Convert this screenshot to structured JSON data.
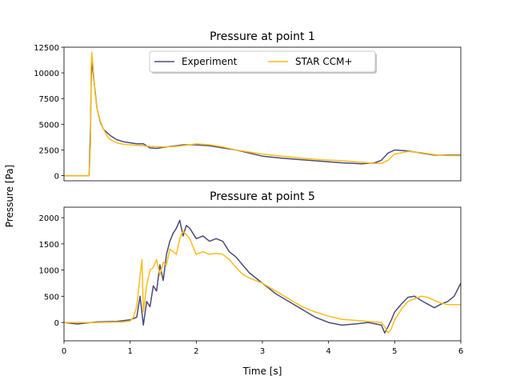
{
  "figure": {
    "ylabel": "Pressure [Pa]",
    "xlabel": "Time [s]"
  },
  "colors": {
    "experiment": "#4b4b7a",
    "star_ccm": "#fbbc1a",
    "legend_border": "#cccccc"
  },
  "chart_data": [
    {
      "type": "line",
      "title": "Pressure at point 1",
      "xlabel": "",
      "ylabel": "Pressure [Pa]",
      "xlim": [
        0,
        6
      ],
      "ylim": [
        -500,
        12500
      ],
      "yticks": [
        0,
        2500,
        5000,
        7500,
        10000,
        12500
      ],
      "ytick_labels": [
        "0",
        "2500",
        "5000",
        "7500",
        "10000",
        "12500"
      ],
      "xticks_visible": false,
      "legend": {
        "placement": "top-center",
        "entries": [
          "Experiment",
          "STAR CCM+"
        ]
      },
      "series": [
        {
          "name": "Experiment",
          "color_key": "experiment",
          "x": [
            0,
            0.38,
            0.4,
            0.41,
            0.42,
            0.44,
            0.47,
            0.5,
            0.55,
            0.6,
            0.7,
            0.8,
            0.9,
            1.0,
            1.1,
            1.2,
            1.3,
            1.4,
            1.5,
            1.6,
            1.7,
            1.8,
            1.9,
            2.0,
            2.2,
            2.4,
            2.6,
            2.8,
            3.0,
            3.3,
            3.6,
            3.9,
            4.2,
            4.5,
            4.7,
            4.8,
            4.9,
            5.0,
            5.2,
            5.4,
            5.6,
            5.8,
            6.0
          ],
          "y": [
            0,
            0,
            4600,
            9000,
            11200,
            10000,
            8200,
            6500,
            5200,
            4500,
            3900,
            3500,
            3300,
            3200,
            3100,
            3100,
            2700,
            2650,
            2750,
            2850,
            2900,
            3000,
            3000,
            3000,
            2900,
            2700,
            2500,
            2200,
            1900,
            1700,
            1550,
            1400,
            1250,
            1150,
            1250,
            1500,
            2200,
            2500,
            2400,
            2200,
            2000,
            2000,
            2000
          ]
        },
        {
          "name": "STAR CCM+",
          "color_key": "star_ccm",
          "x": [
            0,
            0.38,
            0.4,
            0.41,
            0.42,
            0.44,
            0.47,
            0.5,
            0.55,
            0.6,
            0.65,
            0.7,
            0.8,
            0.9,
            1.0,
            1.1,
            1.2,
            1.3,
            1.5,
            1.7,
            1.9,
            2.0,
            2.2,
            2.4,
            2.6,
            2.8,
            3.0,
            3.3,
            3.6,
            3.9,
            4.2,
            4.5,
            4.7,
            4.8,
            4.9,
            5.0,
            5.2,
            5.4,
            5.6,
            5.8,
            6.0
          ],
          "y": [
            0,
            0,
            3000,
            10500,
            12000,
            10500,
            8000,
            6500,
            5300,
            4500,
            3900,
            3500,
            3200,
            3050,
            3000,
            2950,
            2900,
            2850,
            2800,
            2850,
            3000,
            3100,
            3000,
            2800,
            2500,
            2300,
            2100,
            1900,
            1700,
            1550,
            1450,
            1300,
            1200,
            1200,
            1500,
            2100,
            2350,
            2250,
            2050,
            1950,
            1950
          ]
        }
      ]
    },
    {
      "type": "line",
      "title": "Pressure at point 5",
      "xlabel": "Time [s]",
      "ylabel": "Pressure [Pa]",
      "xlim": [
        0,
        6
      ],
      "ylim": [
        -350,
        2200
      ],
      "yticks": [
        0,
        500,
        1000,
        1500,
        2000
      ],
      "ytick_labels": [
        "0",
        "500",
        "1000",
        "1500",
        "2000"
      ],
      "xticks": [
        0,
        1,
        2,
        3,
        4,
        5,
        6
      ],
      "xtick_labels": [
        "0",
        "1",
        "2",
        "3",
        "4",
        "5",
        "6"
      ],
      "series": [
        {
          "name": "Experiment",
          "color_key": "experiment",
          "x": [
            0,
            0.2,
            0.5,
            0.8,
            1.0,
            1.1,
            1.15,
            1.2,
            1.25,
            1.3,
            1.35,
            1.4,
            1.45,
            1.5,
            1.55,
            1.6,
            1.65,
            1.7,
            1.75,
            1.8,
            1.85,
            1.9,
            2.0,
            2.1,
            2.2,
            2.3,
            2.4,
            2.5,
            2.6,
            2.7,
            2.8,
            2.9,
            3.0,
            3.2,
            3.4,
            3.6,
            3.8,
            4.0,
            4.2,
            4.4,
            4.6,
            4.8,
            4.85,
            4.9,
            4.95,
            5.0,
            5.1,
            5.2,
            5.3,
            5.4,
            5.5,
            5.6,
            5.7,
            5.8,
            5.9,
            6.0
          ],
          "y": [
            0,
            -30,
            10,
            20,
            50,
            100,
            500,
            -50,
            400,
            300,
            700,
            600,
            1100,
            800,
            1300,
            1550,
            1700,
            1800,
            1950,
            1650,
            1850,
            1800,
            1600,
            1650,
            1550,
            1600,
            1550,
            1350,
            1250,
            1100,
            950,
            850,
            750,
            550,
            400,
            250,
            100,
            0,
            -50,
            -30,
            0,
            -50,
            -200,
            -80,
            50,
            200,
            350,
            480,
            500,
            420,
            350,
            280,
            350,
            400,
            500,
            750
          ]
        },
        {
          "name": "STAR CCM+",
          "color_key": "star_ccm",
          "x": [
            0,
            0.5,
            0.9,
            1.0,
            1.05,
            1.1,
            1.15,
            1.18,
            1.2,
            1.25,
            1.3,
            1.35,
            1.4,
            1.45,
            1.5,
            1.55,
            1.6,
            1.7,
            1.75,
            1.8,
            1.9,
            1.95,
            2.0,
            2.1,
            2.2,
            2.3,
            2.4,
            2.5,
            2.6,
            2.7,
            2.8,
            3.0,
            3.2,
            3.4,
            3.6,
            3.8,
            4.0,
            4.2,
            4.5,
            4.8,
            4.85,
            4.9,
            4.95,
            5.0,
            5.1,
            5.2,
            5.3,
            5.4,
            5.5,
            5.6,
            5.7,
            5.8,
            6.0
          ],
          "y": [
            0,
            0,
            10,
            30,
            100,
            300,
            900,
            1200,
            200,
            700,
            1000,
            1050,
            1200,
            900,
            1150,
            1100,
            1400,
            1300,
            1600,
            1750,
            1600,
            1450,
            1300,
            1350,
            1300,
            1320,
            1300,
            1200,
            1050,
            920,
            850,
            750,
            600,
            450,
            300,
            200,
            120,
            60,
            30,
            0,
            -80,
            -200,
            -120,
            50,
            250,
            400,
            450,
            500,
            480,
            420,
            370,
            340,
            340
          ]
        }
      ]
    }
  ]
}
